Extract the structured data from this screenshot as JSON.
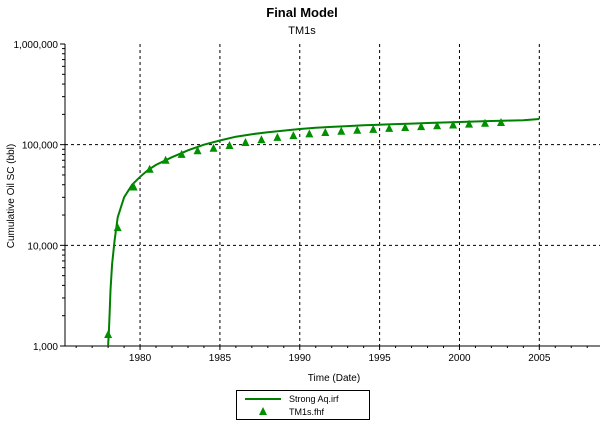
{
  "chart_data": {
    "type": "scatter",
    "title": "Final Model",
    "subtitle": "TM1s",
    "xlabel": "Time (Date)",
    "ylabel": "Cumulative Oil SC (bbl)",
    "xlim": [
      1975.3,
      2008.8
    ],
    "ylim": [
      1000,
      1000000
    ],
    "yscale": "log",
    "x_ticks": [
      1980,
      1985,
      1990,
      1995,
      2000,
      2005
    ],
    "x_tick_labels": [
      "1980",
      "1985",
      "1990",
      "1995",
      "2000",
      "2005"
    ],
    "y_ticks": [
      1000,
      10000,
      100000,
      1000000
    ],
    "y_tick_labels": [
      "1,000",
      "10,000",
      "100,000",
      "1,000,000"
    ],
    "grid": true,
    "legend_position": "bottom-center",
    "series": [
      {
        "name": "Strong Aq.irf",
        "kind": "line",
        "color": "#008000",
        "x": [
          1978.0,
          1978.05,
          1978.1,
          1978.15,
          1978.25,
          1978.4,
          1978.6,
          1979.0,
          1979.5,
          1980.0,
          1980.5,
          1981.0,
          1982.0,
          1983.0,
          1984.0,
          1985.0,
          1986.0,
          1987.0,
          1988.0,
          1989.0,
          1990.0,
          1991.0,
          1992.0,
          1993.0,
          1994.0,
          1995.0,
          1996.0,
          1997.0,
          1998.0,
          1999.0,
          2000.0,
          2001.0,
          2002.0,
          2003.0,
          2004.0,
          2005.0
        ],
        "y": [
          1000,
          1400,
          2200,
          3600,
          6500,
          11000,
          19000,
          30000,
          40000,
          48000,
          56000,
          63000,
          75000,
          88000,
          100000,
          110000,
          120000,
          127000,
          133000,
          138000,
          143000,
          147000,
          150000,
          153000,
          156000,
          158000,
          160000,
          162000,
          164000,
          166000,
          168000,
          170000,
          172000,
          173500,
          175000,
          180000
        ]
      },
      {
        "name": "TM1s.fhf",
        "kind": "marker",
        "marker": "triangle",
        "color": "#009000",
        "x": [
          1978.0,
          1978.6,
          1979.6,
          1980.6,
          1981.6,
          1982.6,
          1983.6,
          1984.6,
          1985.6,
          1986.6,
          1987.6,
          1988.6,
          1989.6,
          1990.6,
          1991.6,
          1992.6,
          1993.6,
          1994.6,
          1995.6,
          1996.6,
          1997.6,
          1998.6,
          1999.6,
          2000.6,
          2001.6,
          2002.6
        ],
        "y": [
          1300,
          15000,
          38000,
          57000,
          70000,
          80000,
          87000,
          92000,
          98000,
          105000,
          112000,
          118000,
          123000,
          128000,
          132000,
          136000,
          139000,
          142000,
          145000,
          148000,
          151000,
          154000,
          157000,
          160000,
          163000,
          166000
        ]
      }
    ]
  }
}
